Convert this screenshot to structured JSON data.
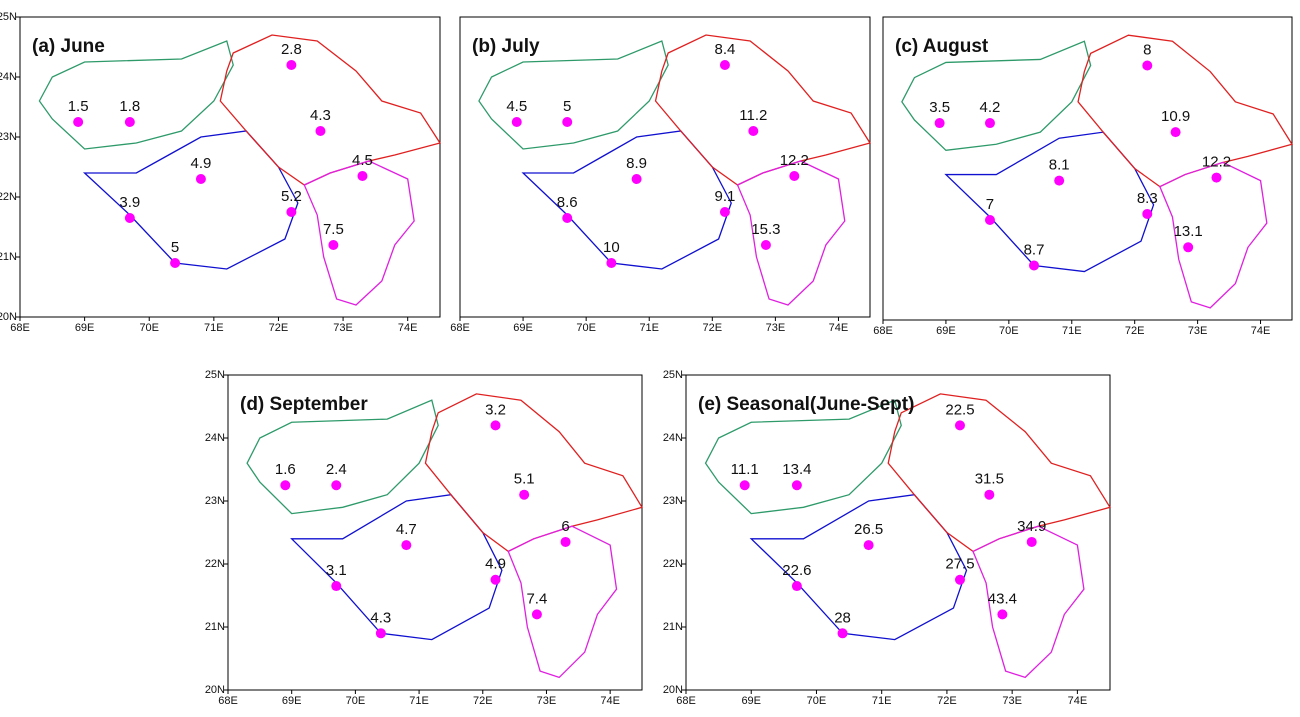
{
  "chart_data": [
    {
      "type": "map",
      "title": "(a) June",
      "color": "#ff00ff",
      "x": [
        68.9,
        69.7,
        70.8,
        69.7,
        70.4,
        72.2,
        72.2,
        72.65,
        73.3,
        72.85
      ],
      "y": [
        23.25,
        23.25,
        22.3,
        21.65,
        20.9,
        21.75,
        24.2,
        23.1,
        22.35,
        21.2
      ],
      "values": [
        1.5,
        1.8,
        4.9,
        3.9,
        5,
        5.2,
        2.8,
        4.3,
        4.5,
        7.5
      ],
      "xlim": [
        68,
        74.5
      ],
      "ylim": [
        20,
        25
      ],
      "xticks": [
        {
          "value": 68,
          "label": "68E"
        },
        {
          "value": 69,
          "label": "69E"
        },
        {
          "value": 70,
          "label": "70E"
        },
        {
          "value": 71,
          "label": "71E"
        },
        {
          "value": 72,
          "label": "72E"
        },
        {
          "value": 73,
          "label": "73E"
        },
        {
          "value": 74,
          "label": "74E"
        }
      ],
      "yticks": [
        {
          "value": 20,
          "label": "20N"
        },
        {
          "value": 21,
          "label": "21N"
        },
        {
          "value": 22,
          "label": "22N"
        },
        {
          "value": 23,
          "label": "23N"
        },
        {
          "value": 24,
          "label": "24N"
        },
        {
          "value": 25,
          "label": "25N"
        }
      ]
    },
    {
      "type": "map",
      "title": "(b) July",
      "color": "#ff00ff",
      "x": [
        68.9,
        69.7,
        70.8,
        69.7,
        70.4,
        72.2,
        72.2,
        72.65,
        73.3,
        72.85
      ],
      "y": [
        23.25,
        23.25,
        22.3,
        21.65,
        20.9,
        21.75,
        24.2,
        23.1,
        22.35,
        21.2
      ],
      "values": [
        4.5,
        5,
        8.9,
        8.6,
        10,
        9.1,
        8.4,
        11.2,
        12.2,
        15.3
      ],
      "xlim": [
        68,
        74.5
      ],
      "ylim": [
        20,
        25
      ],
      "xticks": [
        {
          "value": 68,
          "label": "68E"
        },
        {
          "value": 69,
          "label": "69E"
        },
        {
          "value": 70,
          "label": "70E"
        },
        {
          "value": 71,
          "label": "71E"
        },
        {
          "value": 72,
          "label": "72E"
        },
        {
          "value": 73,
          "label": "73E"
        },
        {
          "value": 74,
          "label": "74E"
        }
      ],
      "yticks": []
    },
    {
      "type": "map",
      "title": "(c) August",
      "color": "#ff00ff",
      "x": [
        68.9,
        69.7,
        70.8,
        69.7,
        70.4,
        72.2,
        72.2,
        72.65,
        73.3,
        72.85
      ],
      "y": [
        23.25,
        23.25,
        22.3,
        21.65,
        20.9,
        21.75,
        24.2,
        23.1,
        22.35,
        21.2
      ],
      "values": [
        3.5,
        4.2,
        8.1,
        7,
        8.7,
        8.3,
        8,
        10.9,
        12.2,
        13.1
      ],
      "xlim": [
        68,
        74.5
      ],
      "ylim": [
        20,
        25
      ],
      "xticks": [
        {
          "value": 68,
          "label": "68E"
        },
        {
          "value": 69,
          "label": "69E"
        },
        {
          "value": 70,
          "label": "70E"
        },
        {
          "value": 71,
          "label": "71E"
        },
        {
          "value": 72,
          "label": "72E"
        },
        {
          "value": 73,
          "label": "73E"
        },
        {
          "value": 74,
          "label": "74E"
        }
      ],
      "yticks": []
    },
    {
      "type": "map",
      "title": "(d) September",
      "color": "#ff00ff",
      "x": [
        68.9,
        69.7,
        70.8,
        69.7,
        70.4,
        72.2,
        72.2,
        72.65,
        73.3,
        72.85
      ],
      "y": [
        23.25,
        23.25,
        22.3,
        21.65,
        20.9,
        21.75,
        24.2,
        23.1,
        22.35,
        21.2
      ],
      "values": [
        1.6,
        2.4,
        4.7,
        3.1,
        4.3,
        4.9,
        3.2,
        5.1,
        6,
        7.4
      ],
      "xlim": [
        68,
        74.5
      ],
      "ylim": [
        20,
        25
      ],
      "xticks": [
        {
          "value": 68,
          "label": "68E"
        },
        {
          "value": 69,
          "label": "69E"
        },
        {
          "value": 70,
          "label": "70E"
        },
        {
          "value": 71,
          "label": "71E"
        },
        {
          "value": 72,
          "label": "72E"
        },
        {
          "value": 73,
          "label": "73E"
        },
        {
          "value": 74,
          "label": "74E"
        }
      ],
      "yticks": [
        {
          "value": 20,
          "label": "20N"
        },
        {
          "value": 21,
          "label": "21N"
        },
        {
          "value": 22,
          "label": "22N"
        },
        {
          "value": 23,
          "label": "23N"
        },
        {
          "value": 24,
          "label": "24N"
        },
        {
          "value": 25,
          "label": "25N"
        }
      ]
    },
    {
      "type": "map",
      "title": "(e) Seasonal(June-Sept)",
      "color": "#ff00ff",
      "x": [
        68.9,
        69.7,
        70.8,
        69.7,
        70.4,
        72.2,
        72.2,
        72.65,
        73.3,
        72.85
      ],
      "y": [
        23.25,
        23.25,
        22.3,
        21.65,
        20.9,
        21.75,
        24.2,
        23.1,
        22.35,
        21.2
      ],
      "values": [
        11.1,
        13.4,
        26.5,
        22.6,
        28,
        27.5,
        22.5,
        31.5,
        34.9,
        43.4
      ],
      "xlim": [
        68,
        74.5
      ],
      "ylim": [
        20,
        25
      ],
      "xticks": [
        {
          "value": 68,
          "label": "68E"
        },
        {
          "value": 69,
          "label": "69E"
        },
        {
          "value": 70,
          "label": "70E"
        },
        {
          "value": 71,
          "label": "71E"
        },
        {
          "value": 72,
          "label": "72E"
        },
        {
          "value": 73,
          "label": "73E"
        },
        {
          "value": 74,
          "label": "74E"
        }
      ],
      "yticks": [
        {
          "value": 20,
          "label": "20N"
        },
        {
          "value": 21,
          "label": "21N"
        },
        {
          "value": 22,
          "label": "22N"
        },
        {
          "value": 23,
          "label": "23N"
        },
        {
          "value": 24,
          "label": "24N"
        },
        {
          "value": 25,
          "label": "25N"
        }
      ]
    }
  ]
}
